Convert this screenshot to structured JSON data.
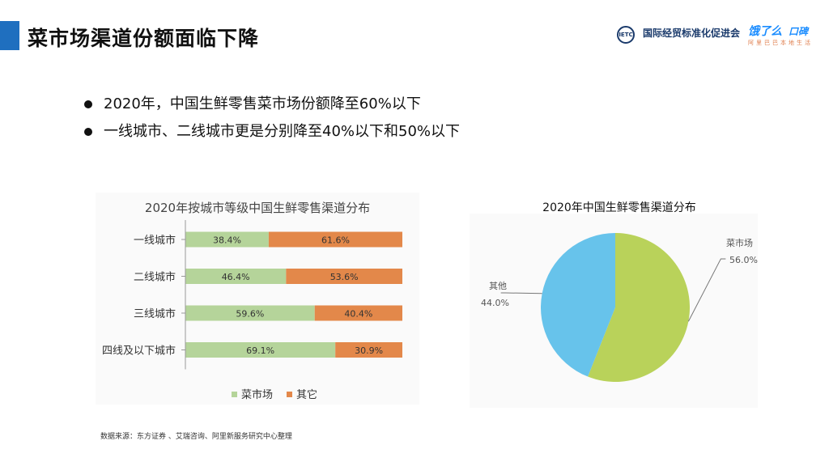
{
  "header": {
    "title": "菜市场渠道份额面临下降",
    "logo_ietc_cn": "国际经贸标准化促进会",
    "logo_eleme": "饿了么",
    "logo_koubei": "口碑",
    "logo_sub": "阿里巴巴本地生活"
  },
  "bullets": [
    "2020年，中国生鲜零售菜市场份额降至60%以下",
    "一线城市、二线城市更是分别降至40%以下和50%以下"
  ],
  "source": "数据来源：东方证券 、艾瑞咨询、阿里新服务研究中心整理",
  "colors": {
    "market": "#b5d49a",
    "other": "#e3884a",
    "pie_market": "#b9d25a",
    "pie_other": "#67c3eb",
    "accent": "#1f6fbf"
  },
  "chart_data": [
    {
      "type": "bar",
      "orientation": "horizontal",
      "stacked": true,
      "percent": true,
      "title": "2020年按城市等级中国生鲜零售渠道分布",
      "categories": [
        "一线城市",
        "二线城市",
        "三线城市",
        "四线及以下城市"
      ],
      "series": [
        {
          "name": "菜市场",
          "values": [
            38.4,
            46.4,
            59.6,
            69.1
          ],
          "labels": [
            "38.4%",
            "46.4%",
            "59.6%",
            "69.1%"
          ]
        },
        {
          "name": "其它",
          "values": [
            61.6,
            53.6,
            40.4,
            30.9
          ],
          "labels": [
            "61.6%",
            "53.6%",
            "40.4%",
            "30.9%"
          ]
        }
      ],
      "legend": "bottom",
      "xlim": [
        0,
        100
      ]
    },
    {
      "type": "pie",
      "title": "2020年中国生鲜零售渠道分布",
      "slices": [
        {
          "label": "菜市场",
          "value": 56.0,
          "value_label": "56.0%"
        },
        {
          "label": "其他",
          "value": 44.0,
          "value_label": "44.0%"
        }
      ]
    }
  ]
}
